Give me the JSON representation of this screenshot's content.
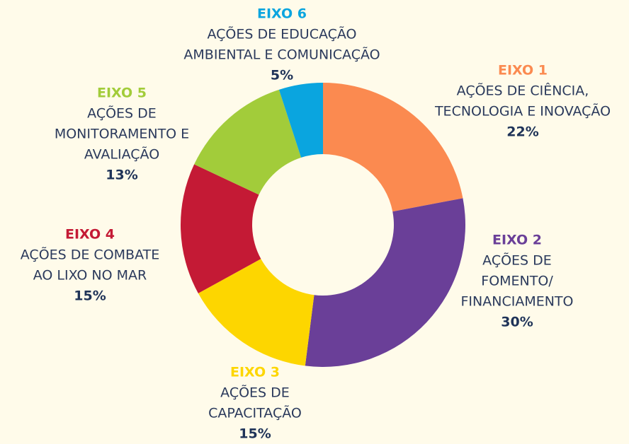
{
  "chart_data": {
    "type": "donut",
    "categories": [
      "EIXO 1",
      "EIXO 2",
      "EIXO 3",
      "EIXO 4",
      "EIXO 5",
      "EIXO 6"
    ],
    "descriptions": [
      [
        "AÇÕES DE CIÊNCIA,",
        "TECNOLOGIA E INOVAÇÃO"
      ],
      [
        "AÇÕES DE",
        "FOMENTO/",
        "FINANCIAMENTO"
      ],
      [
        "AÇÕES DE",
        "CAPACITAÇÃO"
      ],
      [
        "AÇÕES DE COMBATE",
        "AO LIXO NO MAR"
      ],
      [
        "AÇÕES DE",
        "MONITORAMENTO E",
        "AVALIAÇÃO"
      ],
      [
        "AÇÕES DE EDUCAÇÃO",
        "AMBIENTAL E COMUNICAÇÃO"
      ]
    ],
    "values": [
      22,
      30,
      15,
      15,
      13,
      5
    ],
    "value_labels": [
      "22%",
      "30%",
      "15%",
      "15%",
      "13%",
      "5%"
    ],
    "colors": [
      "#fb8a50",
      "#6a3f98",
      "#fdd600",
      "#c41a35",
      "#a2cc3a",
      "#0aa5df"
    ]
  }
}
